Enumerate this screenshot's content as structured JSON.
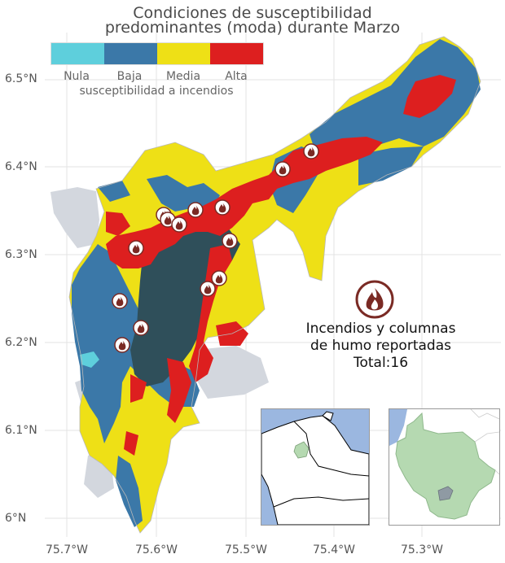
{
  "title_line1": "Condiciones de susceptibilidad",
  "title_line2": "predominantes (moda) durante Marzo",
  "legend": {
    "title": "susceptibilidad a incendios",
    "items": [
      {
        "label": "Nula",
        "color": "#5ecfdc"
      },
      {
        "label": "Baja",
        "color": "#3b78a8"
      },
      {
        "label": "Media",
        "color": "#eee016"
      },
      {
        "label": "Alta",
        "color": "#dd1f1f"
      }
    ]
  },
  "y_ticks": [
    "6.5°N",
    "6.4°N",
    "6.3°N",
    "6.2°N",
    "6.1°N",
    "6°N"
  ],
  "x_ticks": [
    "75.7°W",
    "75.6°W",
    "75.5°W",
    "75.4°W",
    "75.3°W"
  ],
  "annotation": {
    "line1": "Incendios y columnas",
    "line2": "de humo reportadas",
    "line3": "Total:16"
  },
  "fire_icon": "fire-icon",
  "fire_count": 16,
  "colors": {
    "background_region": "#d3d7de",
    "cluster": "#2f4f5a",
    "inset_water": "#9bb7e0",
    "inset_region": "#b5d9b1"
  }
}
